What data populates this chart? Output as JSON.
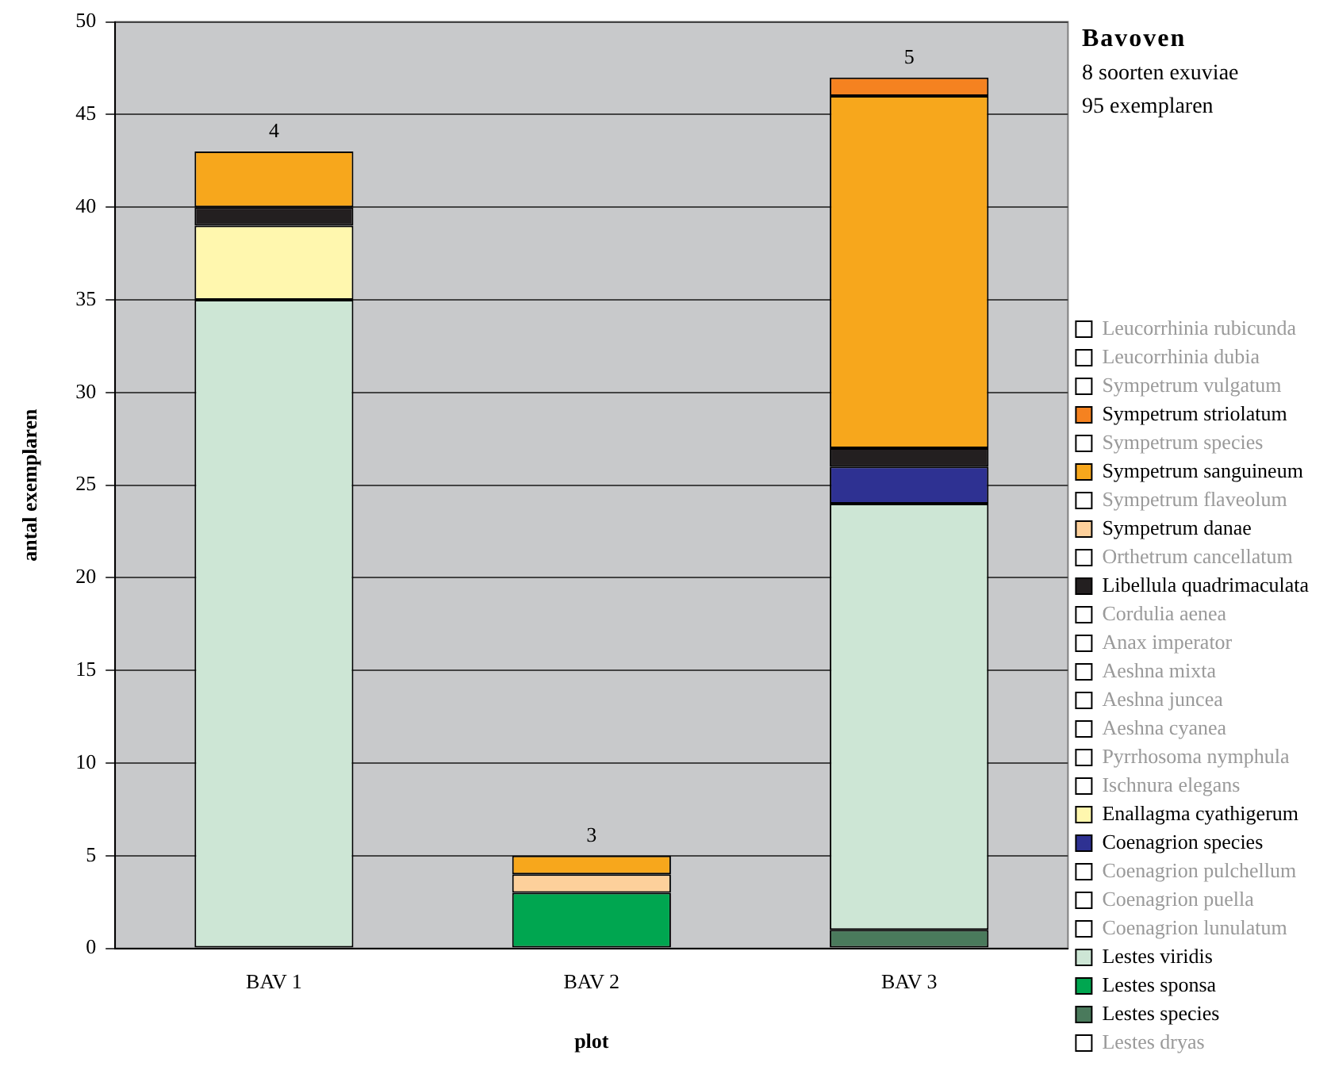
{
  "chart_data": {
    "type": "bar",
    "stacked": true,
    "title": "Bavoven",
    "xlabel": "plot",
    "ylabel": "antal exemplaren",
    "categories": [
      "BAV 1",
      "BAV 2",
      "BAV 3"
    ],
    "ylim": [
      0,
      50
    ],
    "yticks": [
      0,
      5,
      10,
      15,
      20,
      25,
      30,
      35,
      40,
      45,
      50
    ],
    "grid": "y",
    "legend": "right",
    "annotations": [
      "8 soorten exuviae",
      "95 exemplaren",
      {
        "text": "4",
        "x": "BAV 1",
        "y": 43
      },
      {
        "text": "3",
        "x": "BAV 2",
        "y": 5
      },
      {
        "text": "5",
        "x": "BAV 3",
        "y": 47
      }
    ],
    "series": [
      {
        "name": "Lestes dryas",
        "color": "#ffffff",
        "values": [
          0,
          0,
          0
        ]
      },
      {
        "name": "Lestes species",
        "color": "#4a7a5c",
        "values": [
          0,
          0,
          1
        ]
      },
      {
        "name": "Lestes sponsa",
        "color": "#00a650",
        "values": [
          0,
          3,
          0
        ]
      },
      {
        "name": "Lestes viridis",
        "color": "#cde6d5",
        "values": [
          35,
          0,
          23
        ]
      },
      {
        "name": "Coenagrion lunulatum",
        "color": "#ffffff",
        "values": [
          0,
          0,
          0
        ]
      },
      {
        "name": "Coenagrion puella",
        "color": "#ffffff",
        "values": [
          0,
          0,
          0
        ]
      },
      {
        "name": "Coenagrion pulchellum",
        "color": "#ffffff",
        "values": [
          0,
          0,
          0
        ]
      },
      {
        "name": "Coenagrion species",
        "color": "#2e3192",
        "values": [
          0,
          0,
          2
        ]
      },
      {
        "name": "Enallagma cyathigerum",
        "color": "#fff7ae",
        "values": [
          4,
          0,
          0
        ]
      },
      {
        "name": "Ischnura elegans",
        "color": "#ffffff",
        "values": [
          0,
          0,
          0
        ]
      },
      {
        "name": "Pyrrhosoma nymphula",
        "color": "#ffffff",
        "values": [
          0,
          0,
          0
        ]
      },
      {
        "name": "Aeshna cyanea",
        "color": "#ffffff",
        "values": [
          0,
          0,
          0
        ]
      },
      {
        "name": "Aeshna juncea",
        "color": "#ffffff",
        "values": [
          0,
          0,
          0
        ]
      },
      {
        "name": "Aeshna mixta",
        "color": "#ffffff",
        "values": [
          0,
          0,
          0
        ]
      },
      {
        "name": "Anax imperator",
        "color": "#ffffff",
        "values": [
          0,
          0,
          0
        ]
      },
      {
        "name": "Cordulia aenea",
        "color": "#ffffff",
        "values": [
          0,
          0,
          0
        ]
      },
      {
        "name": "Libellula quadrimaculata",
        "color": "#231f20",
        "values": [
          1,
          0,
          1
        ]
      },
      {
        "name": "Orthetrum cancellatum",
        "color": "#ffffff",
        "values": [
          0,
          0,
          0
        ]
      },
      {
        "name": "Sympetrum danae",
        "color": "#fdd09b",
        "values": [
          0,
          1,
          0
        ]
      },
      {
        "name": "Sympetrum flaveolum",
        "color": "#ffffff",
        "values": [
          0,
          0,
          0
        ]
      },
      {
        "name": "Sympetrum sanguineum",
        "color": "#f7a71c",
        "values": [
          3,
          1,
          19
        ]
      },
      {
        "name": "Sympetrum species",
        "color": "#ffffff",
        "values": [
          0,
          0,
          0
        ]
      },
      {
        "name": "Sympetrum striolatum",
        "color": "#f58220",
        "values": [
          0,
          0,
          1
        ]
      },
      {
        "name": "Sympetrum vulgatum",
        "color": "#ffffff",
        "values": [
          0,
          0,
          0
        ]
      },
      {
        "name": "Leucorrhinia dubia",
        "color": "#ffffff",
        "values": [
          0,
          0,
          0
        ]
      },
      {
        "name": "Leucorrhinia rubicunda",
        "color": "#ffffff",
        "values": [
          0,
          0,
          0
        ]
      }
    ]
  }
}
